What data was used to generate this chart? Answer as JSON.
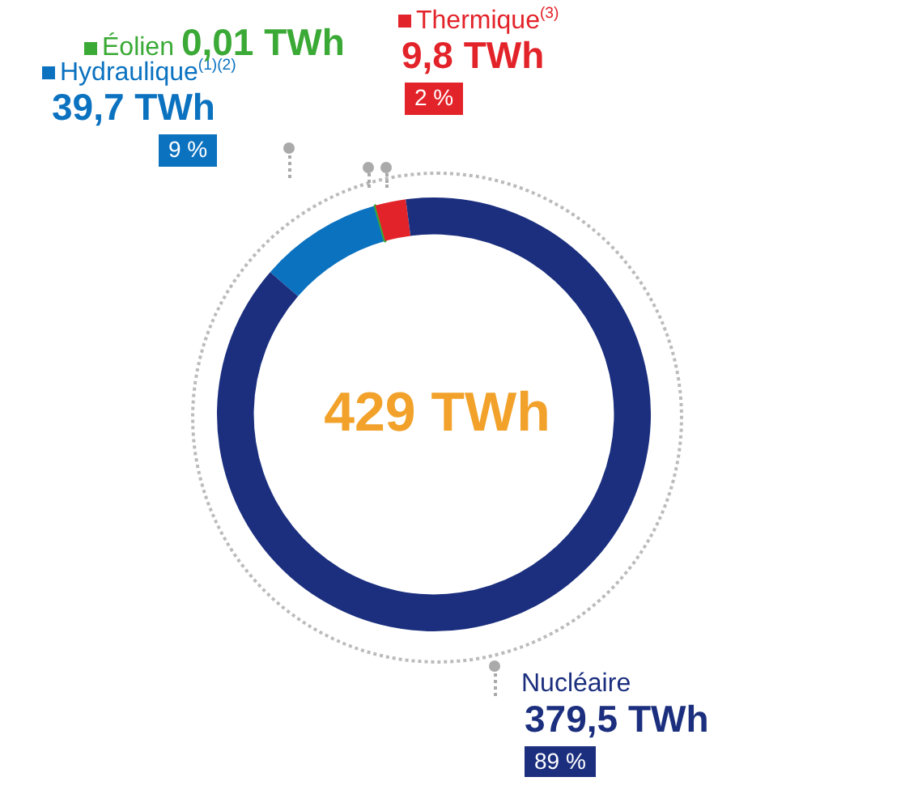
{
  "chart_data": {
    "type": "donut",
    "title": "429 TWh",
    "categories": [
      "Hydraulique$^{(1)(2)}$",
      "Éolien",
      "Thermique$^{(3)}$",
      "Nucléaire"
    ],
    "values": [
      39.7,
      0.01,
      9.8,
      379.5
    ],
    "colors": [
      "#0b72c0",
      "#3aa935",
      "#e3232a",
      "#1b2f7e"
    ],
    "legend": "top left",
    "value_labels": [
      "39,7 TWh",
      "0,01 TWh",
      "9,8 TWh",
      "379,5 TWh"
    ],
    "annotations": [
      {
        "text": "9 %",
        "x": "Hydraulique$^{(1)(2)}$"
      },
      {
        "text": "2 %",
        "x": "Thermique$^{(3)}$"
      },
      {
        "text": "89 %",
        "x": "Nucléaire"
      }
    ]
  }
}
